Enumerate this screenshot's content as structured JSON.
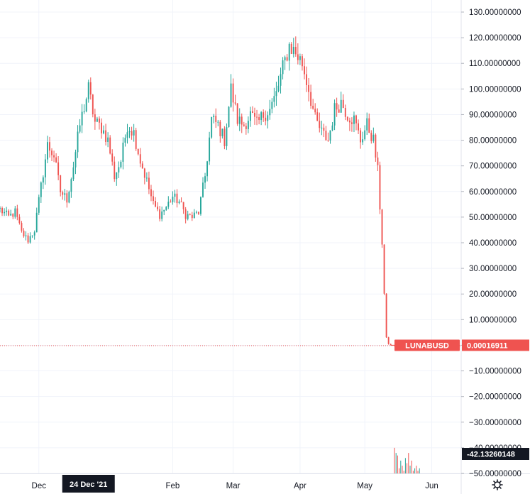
{
  "chart_data": {
    "type": "candlestick",
    "symbol": "LUNABUSD",
    "last_price": "0.00016911",
    "crosshair_price": "-42.13260148",
    "crosshair_date": "24 Dec '21",
    "y_ticks": [
      "130.00000000",
      "120.00000000",
      "110.00000000",
      "100.00000000",
      "90.00000000",
      "80.00000000",
      "70.00000000",
      "60.00000000",
      "50.00000000",
      "40.00000000",
      "30.00000000",
      "20.00000000",
      "10.00000000",
      "0.00000000",
      "−10.00000000",
      "−20.00000000",
      "−30.00000000",
      "−40.00000000",
      "−50.00000000"
    ],
    "y_tick_values": [
      130,
      120,
      110,
      100,
      90,
      80,
      70,
      60,
      50,
      40,
      30,
      20,
      10,
      0,
      -10,
      -20,
      -30,
      -40,
      -50
    ],
    "ylim": [
      -50,
      130
    ],
    "x_ticks": [
      "Dec",
      "Feb",
      "Mar",
      "Apr",
      "May",
      "Jun"
    ],
    "x_range": [
      "2021-11-13",
      "2022-06-13"
    ],
    "x_tick_dates": [
      "2021-12-01",
      "2022-02-01",
      "2022-03-01",
      "2022-04-01",
      "2022-05-01",
      "2022-06-01"
    ],
    "crosshair_date_iso": "2021-12-24",
    "up_color": "#26a69a",
    "down_color": "#ef5350",
    "close_path": [
      [
        "2021-11-13",
        53
      ],
      [
        "2021-11-17",
        50
      ],
      [
        "2021-11-20",
        52
      ],
      [
        "2021-11-23",
        44
      ],
      [
        "2021-11-26",
        41
      ],
      [
        "2021-11-29",
        45
      ],
      [
        "2021-12-02",
        62
      ],
      [
        "2021-12-05",
        78
      ],
      [
        "2021-12-08",
        74
      ],
      [
        "2021-12-11",
        60
      ],
      [
        "2021-12-14",
        57
      ],
      [
        "2021-12-17",
        70
      ],
      [
        "2021-12-20",
        86
      ],
      [
        "2021-12-24",
        100
      ],
      [
        "2021-12-27",
        87
      ],
      [
        "2021-12-30",
        85
      ],
      [
        "2022-01-02",
        80
      ],
      [
        "2022-01-05",
        66
      ],
      [
        "2022-01-08",
        72
      ],
      [
        "2022-01-11",
        86
      ],
      [
        "2022-01-14",
        83
      ],
      [
        "2022-01-17",
        72
      ],
      [
        "2022-01-20",
        64
      ],
      [
        "2022-01-23",
        55
      ],
      [
        "2022-01-26",
        51
      ],
      [
        "2022-01-29",
        54
      ],
      [
        "2022-02-01",
        58
      ],
      [
        "2022-02-04",
        56
      ],
      [
        "2022-02-07",
        51
      ],
      [
        "2022-02-10",
        50
      ],
      [
        "2022-02-13",
        52
      ],
      [
        "2022-02-16",
        66
      ],
      [
        "2022-02-19",
        88
      ],
      [
        "2022-02-22",
        86
      ],
      [
        "2022-02-25",
        80
      ],
      [
        "2022-02-28",
        100
      ],
      [
        "2022-03-03",
        88
      ],
      [
        "2022-03-06",
        86
      ],
      [
        "2022-03-09",
        90
      ],
      [
        "2022-03-12",
        86
      ],
      [
        "2022-03-15",
        90
      ],
      [
        "2022-03-18",
        92
      ],
      [
        "2022-03-21",
        98
      ],
      [
        "2022-03-24",
        108
      ],
      [
        "2022-03-27",
        117
      ],
      [
        "2022-03-30",
        114
      ],
      [
        "2022-04-02",
        110
      ],
      [
        "2022-04-05",
        100
      ],
      [
        "2022-04-08",
        88
      ],
      [
        "2022-04-11",
        83
      ],
      [
        "2022-04-14",
        80
      ],
      [
        "2022-04-17",
        92
      ],
      [
        "2022-04-20",
        95
      ],
      [
        "2022-04-23",
        90
      ],
      [
        "2022-04-26",
        88
      ],
      [
        "2022-04-29",
        80
      ],
      [
        "2022-05-02",
        86
      ],
      [
        "2022-05-05",
        80
      ],
      [
        "2022-05-07",
        68
      ],
      [
        "2022-05-09",
        40
      ],
      [
        "2022-05-10",
        20
      ],
      [
        "2022-05-11",
        3
      ],
      [
        "2022-05-12",
        0.5
      ],
      [
        "2022-05-13",
        0
      ]
    ],
    "histogram_values": [
      -40,
      -42,
      -43,
      -48,
      -45,
      -47,
      -49,
      -44,
      -46,
      -42,
      -47,
      -45,
      -49,
      -48,
      -47,
      -49,
      -48,
      -50
    ]
  }
}
